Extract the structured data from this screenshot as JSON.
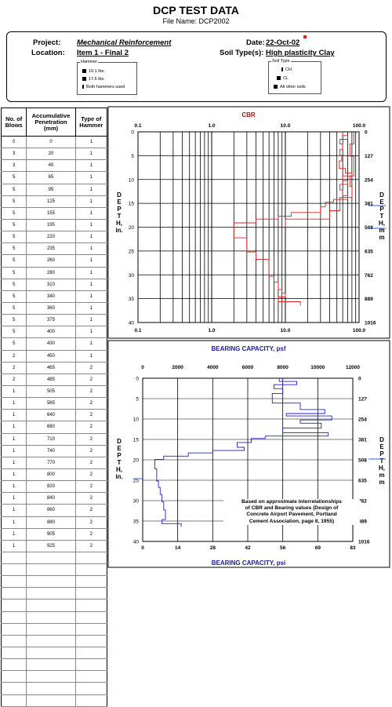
{
  "header": {
    "title": "DCP TEST DATA",
    "file_label": "File Name:",
    "file_name": "DCP2002"
  },
  "info": {
    "project_label": "Project:",
    "project": "Mechanical Reinforcement",
    "location_label": "Location:",
    "location": "Item 1 - Final 2",
    "date_label": "Date:",
    "date": "22-Oct-02",
    "soil_label": "Soil Type(s):",
    "soil": "High plasticity Clay"
  },
  "hammer_legend": {
    "title": "Hammer",
    "items": [
      "10.1 lbs.",
      "17.6 lbs.",
      "Both hammers used"
    ]
  },
  "soil_legend": {
    "title": "Soil Type",
    "items": [
      "CH",
      "CL",
      "All other soils"
    ]
  },
  "table": {
    "headers": [
      "No. of Blows",
      "Accumulative Penetration (mm)",
      "Type of Hammer"
    ],
    "rows": [
      [
        "0",
        "0",
        "1"
      ],
      [
        "3",
        "20",
        "1"
      ],
      [
        "3",
        "40",
        "1"
      ],
      [
        "5",
        "65",
        "1"
      ],
      [
        "5",
        "95",
        "1"
      ],
      [
        "5",
        "125",
        "1"
      ],
      [
        "5",
        "155",
        "1"
      ],
      [
        "5",
        "195",
        "1"
      ],
      [
        "5",
        "220",
        "1"
      ],
      [
        "5",
        "235",
        "1"
      ],
      [
        "5",
        "260",
        "1"
      ],
      [
        "5",
        "280",
        "1"
      ],
      [
        "5",
        "310",
        "1"
      ],
      [
        "5",
        "340",
        "1"
      ],
      [
        "5",
        "360",
        "1"
      ],
      [
        "5",
        "375",
        "1"
      ],
      [
        "5",
        "400",
        "1"
      ],
      [
        "5",
        "430",
        "1"
      ],
      [
        "2",
        "450",
        "1"
      ],
      [
        "2",
        "465",
        "2"
      ],
      [
        "2",
        "485",
        "2"
      ],
      [
        "1",
        "505",
        "2"
      ],
      [
        "1",
        "565",
        "2"
      ],
      [
        "1",
        "640",
        "2"
      ],
      [
        "1",
        "680",
        "2"
      ],
      [
        "1",
        "710",
        "2"
      ],
      [
        "1",
        "740",
        "2"
      ],
      [
        "1",
        "770",
        "2"
      ],
      [
        "1",
        "800",
        "2"
      ],
      [
        "1",
        "820",
        "2"
      ],
      [
        "1",
        "840",
        "2"
      ],
      [
        "1",
        "860",
        "2"
      ],
      [
        "1",
        "880",
        "2"
      ],
      [
        "1",
        "905",
        "2"
      ],
      [
        "1",
        "925",
        "2"
      ],
      [
        "",
        "",
        ""
      ],
      [
        "",
        "",
        ""
      ],
      [
        "",
        "",
        ""
      ],
      [
        "",
        "",
        ""
      ],
      [
        "",
        "",
        ""
      ],
      [
        "",
        "",
        ""
      ],
      [
        "",
        "",
        ""
      ],
      [
        "",
        "",
        ""
      ],
      [
        "",
        "",
        ""
      ],
      [
        "",
        "",
        ""
      ],
      [
        "",
        "",
        ""
      ],
      [
        "",
        "",
        ""
      ],
      [
        "",
        "",
        ""
      ]
    ]
  },
  "axis_labels": {
    "left_depth_in": [
      "D",
      "E",
      "P",
      "T",
      "H,",
      "in."
    ],
    "right_depth_mm": [
      "D",
      "E",
      "P",
      "T",
      "H,",
      "m",
      "m"
    ]
  },
  "note": [
    "Based on approximate interrelationships",
    "of CBR and Bearing values (Design of",
    "Concrete Airport Pavement, Portland",
    "Cement Association, page 8, 1955)"
  ],
  "chart_data": [
    {
      "type": "line",
      "title": "CBR",
      "x_scale": "log",
      "xlim": [
        0.1,
        100
      ],
      "x_ticks": [
        "0.1",
        "1.0",
        "10.0",
        "100.0"
      ],
      "ylim": [
        0,
        40
      ],
      "y_ticks": [
        "0",
        "5",
        "10",
        "15",
        "20",
        "25",
        "30",
        "35",
        "40"
      ],
      "right_ticks_mm": [
        "0",
        "127",
        "254",
        "381",
        "508",
        "635",
        "762",
        "889",
        "1016"
      ],
      "series": [
        {
          "color": "#e02020",
          "depth_in": [
            0,
            0.79,
            0.79,
            1.57,
            1.57,
            2.56,
            2.56,
            3.74,
            3.74,
            4.92,
            4.92,
            6.1,
            6.1,
            7.68,
            7.68,
            8.66,
            8.66,
            9.25,
            9.25,
            10.24,
            10.24,
            11.02,
            11.02,
            12.2,
            12.2,
            13.39,
            13.39,
            14.17,
            14.17,
            14.76,
            14.76,
            15.75,
            15.75,
            16.93,
            16.93,
            17.72,
            17.72,
            18.31,
            18.31,
            19.09,
            19.09,
            19.88,
            19.88,
            22.24,
            22.24,
            25.2,
            25.2,
            26.77,
            26.77,
            27.95,
            27.95,
            29.13,
            29.13,
            30.31,
            30.31,
            31.5,
            31.5,
            32.28,
            32.28,
            33.07,
            33.07,
            33.86,
            33.86,
            34.65,
            34.65,
            35.63,
            35.63,
            36.42
          ],
          "cbr": [
            60,
            60,
            70,
            70,
            55,
            55,
            60,
            60,
            55,
            55,
            58,
            58,
            54,
            54,
            65,
            65,
            80,
            80,
            60,
            60,
            70,
            70,
            55,
            55,
            60,
            60,
            70,
            70,
            45,
            45,
            35,
            35,
            30,
            30,
            12,
            12,
            8,
            8,
            4,
            4,
            2,
            2,
            2,
            2,
            3,
            3,
            4,
            4,
            6,
            6,
            6,
            6,
            6,
            6,
            7,
            7,
            8,
            8,
            8,
            8,
            9,
            9,
            10,
            10,
            8,
            8,
            16,
            16
          ]
        },
        {
          "color": "#e02020",
          "depth_in": [
            0,
            2.56,
            2.56,
            5.12,
            5.12,
            9.25,
            9.25,
            11.42,
            11.42,
            13.78,
            13.78,
            16.54,
            16.54,
            18.31,
            18.31,
            20.0
          ],
          "cbr": [
            85,
            85,
            75,
            75,
            85,
            85,
            75,
            75,
            80,
            80,
            55,
            55,
            40,
            40,
            10,
            10
          ]
        }
      ]
    },
    {
      "type": "line",
      "title": "BEARING CAPACITY, psf",
      "xlabel_bottom": "BEARING CAPACITY, psi",
      "xlim": [
        0,
        12000
      ],
      "x_ticks_top": [
        "0",
        "2000",
        "4000",
        "6000",
        "8000",
        "10000",
        "12000"
      ],
      "x_ticks_bottom": [
        "0",
        "14",
        "28",
        "42",
        "56",
        "69",
        "83"
      ],
      "ylim": [
        0,
        40
      ],
      "y_ticks": [
        "0",
        "5",
        "10",
        "15",
        "20",
        "25",
        "30",
        "35",
        "40"
      ],
      "right_ticks_mm": [
        "0",
        "127",
        "254",
        "381",
        "508",
        "635",
        "762",
        "889",
        "1016"
      ],
      "series": [
        {
          "color": "#2020d0",
          "depth_in": [
            0,
            0.79,
            0.79,
            1.57,
            1.57,
            2.56,
            2.56,
            3.74,
            3.74,
            6.1,
            6.1,
            7.68,
            7.68,
            8.66,
            8.66,
            9.25,
            9.25,
            10.24,
            10.24,
            11.02,
            11.02,
            12.2,
            12.2,
            13.39,
            13.39,
            14.17,
            14.17,
            14.76,
            14.76,
            15.75,
            15.75,
            16.93,
            16.93,
            17.72,
            17.72,
            18.31,
            18.31,
            19.09,
            19.09,
            19.88,
            19.88,
            22.24,
            22.24,
            25.2,
            25.2,
            26.77,
            26.77,
            28.5,
            28.5,
            30.31,
            30.31,
            32.28,
            32.28,
            34.65,
            34.65,
            35.63,
            35.63,
            36.42
          ],
          "psf": [
            7800,
            7800,
            8800,
            8800,
            7500,
            7500,
            8000,
            8000,
            7400,
            7400,
            9000,
            9000,
            10400,
            10400,
            8200,
            8200,
            10800,
            10800,
            9000,
            9000,
            10200,
            10200,
            8000,
            8000,
            10600,
            10600,
            7000,
            7000,
            6200,
            6200,
            5400,
            5400,
            5800,
            5800,
            4000,
            4000,
            2600,
            2600,
            1200,
            1200,
            700,
            700,
            800,
            800,
            900,
            900,
            1000,
            1000,
            1100,
            1100,
            1200,
            1200,
            1300,
            1300,
            1100,
            1100,
            2200,
            2200
          ]
        }
      ]
    }
  ]
}
